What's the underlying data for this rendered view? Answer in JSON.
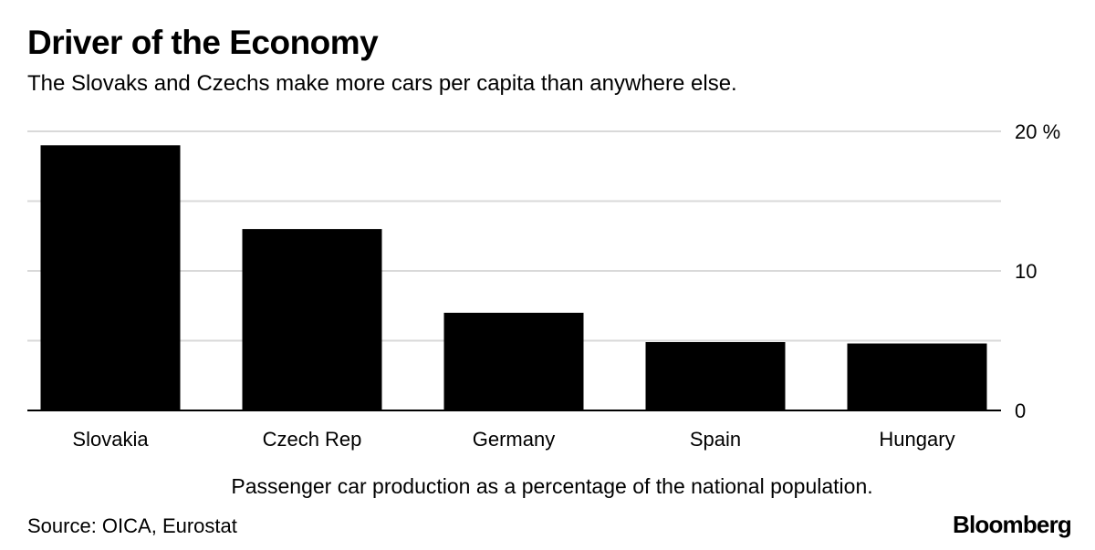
{
  "header": {
    "title": "Driver of the Economy",
    "subtitle": "The Slovaks and Czechs make more cars per capita than anywhere else."
  },
  "footer": {
    "note": "Passenger car production as a percentage of the national population.",
    "source": "Source: OICA, Eurostat",
    "brand": "Bloomberg"
  },
  "chart_data": {
    "type": "bar",
    "title": "Driver of the Economy",
    "subtitle": "The Slovaks and Czechs make more cars per capita than anywhere else.",
    "categories": [
      "Slovakia",
      "Czech Rep",
      "Germany",
      "Spain",
      "Hungary"
    ],
    "values": [
      19.0,
      13.0,
      7.0,
      4.9,
      4.8
    ],
    "ylim": [
      0,
      20
    ],
    "yticks": [
      0,
      10,
      20
    ],
    "ytick_labels": [
      "0",
      "10",
      "20 %"
    ],
    "grid": true,
    "bar_color": "#000000",
    "grid_color": "#d9d9d9",
    "xlabel": "Passenger car production as a percentage of the national population.",
    "ylabel": ""
  }
}
